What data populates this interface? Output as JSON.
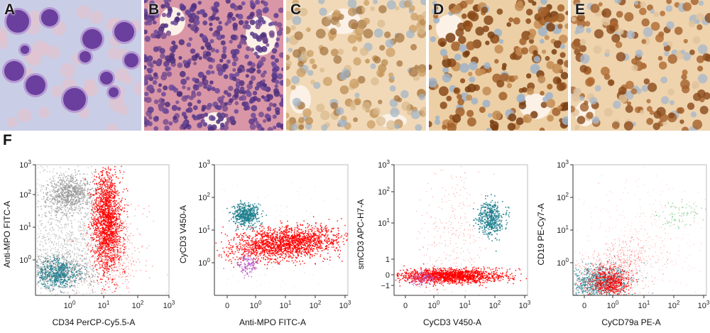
{
  "panels": [
    {
      "letter": "A",
      "bg": "#c9cde6"
    },
    {
      "letter": "B",
      "bg": "#d996a6"
    },
    {
      "letter": "C",
      "bg": "#f1d9b8"
    },
    {
      "letter": "D",
      "bg": "#eccfa5"
    },
    {
      "letter": "E",
      "bg": "#eed3ad"
    }
  ],
  "flow_label": "F",
  "chart_data": [
    {
      "type": "scatter",
      "xlabel": "CD34 PerCP-Cy5.5-A",
      "ylabel": "Anti-MPO FITC-A",
      "x_ticks": [
        "10^0",
        "10^1",
        "10^2",
        "10^3"
      ],
      "y_ticks": [
        "10^0",
        "10^1",
        "10^2",
        "10^3"
      ],
      "populations": [
        {
          "color": "#9a9a9a",
          "note": "gray"
        },
        {
          "color": "#ff0000",
          "note": "red"
        },
        {
          "color": "#1f7f8f",
          "note": "teal"
        }
      ]
    },
    {
      "type": "scatter",
      "xlabel": "Anti-MPO FITC-A",
      "ylabel": "CyCD3 V450-A",
      "x_ticks": [
        "0",
        "10^0",
        "10^1",
        "10^2",
        "10^3"
      ],
      "y_ticks": [
        "10^0",
        "10^1",
        "10^2",
        "10^3"
      ],
      "populations": [
        {
          "color": "#1f7f8f"
        },
        {
          "color": "#ff0000"
        },
        {
          "color": "#b04fc0"
        }
      ]
    },
    {
      "type": "scatter",
      "xlabel": "CyCD3 V450-A",
      "ylabel": "smCD3 APC-H7-A",
      "x_ticks": [
        "0",
        "10^0",
        "10^1",
        "10^2",
        "10^3"
      ],
      "y_ticks": [
        "−1",
        "0",
        "1",
        "10^1",
        "10^2",
        "10^3"
      ],
      "populations": [
        {
          "color": "#1f7f8f"
        },
        {
          "color": "#ff0000"
        },
        {
          "color": "#b04fc0"
        }
      ]
    },
    {
      "type": "scatter",
      "xlabel": "CyCD79a PE-A",
      "ylabel": "CD19 PE-Cy7-A",
      "x_ticks": [
        "0",
        "10^0",
        "10^1",
        "10^2",
        "10^3"
      ],
      "y_ticks": [
        "10^0",
        "10^1",
        "10^2",
        "10^3"
      ],
      "populations": [
        {
          "color": "#9a9a9a"
        },
        {
          "color": "#ff0000"
        },
        {
          "color": "#1f7f8f"
        },
        {
          "color": "#3db04a"
        }
      ]
    }
  ]
}
